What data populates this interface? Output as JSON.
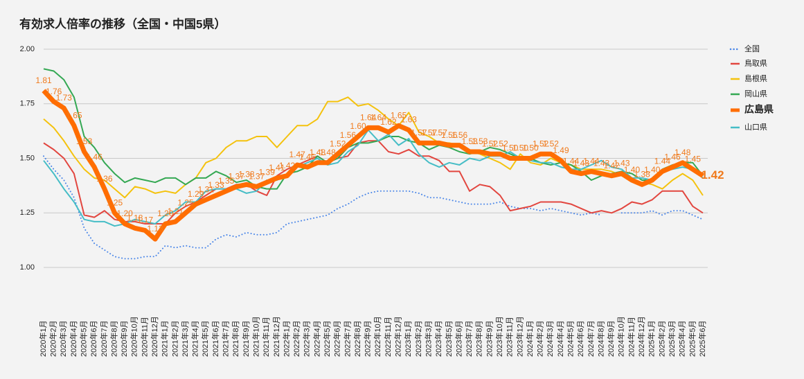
{
  "chart_data": {
    "type": "line",
    "title": "有効求人倍率の推移（全国・中国5県）",
    "categories": [
      "2020年1月",
      "2020年2月",
      "2020年3月",
      "2020年4月",
      "2020年5月",
      "2020年6月",
      "2020年7月",
      "2020年8月",
      "2020年9月",
      "2020年10月",
      "2020年11月",
      "2020年12月",
      "2021年1月",
      "2021年2月",
      "2021年3月",
      "2021年4月",
      "2021年5月",
      "2021年6月",
      "2021年7月",
      "2021年8月",
      "2021年9月",
      "2021年10月",
      "2021年11月",
      "2021年12月",
      "2022年1月",
      "2022年2月",
      "2022年3月",
      "2022年4月",
      "2022年5月",
      "2022年6月",
      "2022年7月",
      "2022年8月",
      "2022年9月",
      "2022年10月",
      "2022年11月",
      "2022年12月",
      "2023年1月",
      "2023年2月",
      "2023年3月",
      "2023年4月",
      "2023年5月",
      "2023年6月",
      "2023年7月",
      "2023年8月",
      "2023年9月",
      "2023年10月",
      "2023年11月",
      "2023年12月",
      "2024年1月",
      "2024年2月",
      "2024年3月",
      "2024年4月",
      "2024年5月",
      "2024年6月",
      "2024年7月",
      "2024年8月",
      "2024年9月",
      "2024年10月",
      "2024年11月",
      "2024年12月",
      "2025年1月",
      "2025年2月",
      "2025年3月",
      "2025年4月",
      "2025年5月",
      "2025年6月"
    ],
    "ylim": [
      0.85,
      2.0
    ],
    "yticks": [
      {
        "value": 1,
        "label": "1.00"
      },
      {
        "value": 1.25,
        "label": "1.25"
      },
      {
        "value": 1.5,
        "label": "1.50"
      },
      {
        "value": 1.75,
        "label": "1.75"
      },
      {
        "value": 2,
        "label": "2.00"
      }
    ],
    "grid": true,
    "legend": "right",
    "series": [
      {
        "name": "全国",
        "color": "#4a86e8",
        "line_style": "dotted",
        "line_width": 2,
        "values": [
          1.51,
          1.45,
          1.4,
          1.32,
          1.18,
          1.11,
          1.08,
          1.05,
          1.04,
          1.04,
          1.05,
          1.05,
          1.1,
          1.09,
          1.1,
          1.09,
          1.09,
          1.13,
          1.15,
          1.14,
          1.16,
          1.15,
          1.15,
          1.16,
          1.2,
          1.21,
          1.22,
          1.23,
          1.24,
          1.27,
          1.29,
          1.32,
          1.34,
          1.35,
          1.35,
          1.35,
          1.35,
          1.34,
          1.32,
          1.32,
          1.31,
          1.3,
          1.29,
          1.29,
          1.29,
          1.3,
          1.28,
          1.27,
          1.27,
          1.26,
          1.27,
          1.26,
          1.25,
          1.24,
          1.25,
          1.24,
          null,
          1.25,
          1.25,
          1.25,
          1.26,
          1.24,
          1.26,
          1.26,
          1.24,
          1.22
        ]
      },
      {
        "name": "鳥取県",
        "color": "#e2463f",
        "line_width": 2,
        "values": [
          1.57,
          1.54,
          1.5,
          1.43,
          1.24,
          1.23,
          1.26,
          1.22,
          1.21,
          1.21,
          1.2,
          1.2,
          1.2,
          1.25,
          1.28,
          1.3,
          1.33,
          1.36,
          1.36,
          1.38,
          1.38,
          1.35,
          1.33,
          1.42,
          1.45,
          1.47,
          1.49,
          1.51,
          1.48,
          1.5,
          1.51,
          1.57,
          1.58,
          1.58,
          1.53,
          1.52,
          1.54,
          1.51,
          1.51,
          1.49,
          1.44,
          1.44,
          1.35,
          1.38,
          1.37,
          1.33,
          1.26,
          1.27,
          1.28,
          1.3,
          1.3,
          1.3,
          1.29,
          1.27,
          1.25,
          1.26,
          1.25,
          1.27,
          1.3,
          1.29,
          1.31,
          1.35,
          1.35,
          1.35,
          1.28,
          1.25
        ]
      },
      {
        "name": "島根県",
        "color": "#f4c20d",
        "line_width": 2,
        "values": [
          1.68,
          1.64,
          1.58,
          1.51,
          1.45,
          1.41,
          1.4,
          1.36,
          1.32,
          1.37,
          1.36,
          1.34,
          1.35,
          1.34,
          1.38,
          1.41,
          1.48,
          1.5,
          1.55,
          1.58,
          1.58,
          1.6,
          1.6,
          1.55,
          1.6,
          1.65,
          1.65,
          1.68,
          1.76,
          1.76,
          1.78,
          1.74,
          1.75,
          1.72,
          1.68,
          1.65,
          1.71,
          1.62,
          1.6,
          1.57,
          1.57,
          1.56,
          1.53,
          1.52,
          1.5,
          1.48,
          1.45,
          1.52,
          1.48,
          1.47,
          1.5,
          1.48,
          1.47,
          1.45,
          1.45,
          1.45,
          1.44,
          1.42,
          1.4,
          1.39,
          1.38,
          1.36,
          1.4,
          1.43,
          1.4,
          1.33
        ]
      },
      {
        "name": "岡山県",
        "color": "#34a853",
        "line_width": 2,
        "values": [
          1.91,
          1.9,
          1.86,
          1.78,
          1.6,
          1.55,
          1.48,
          1.43,
          1.39,
          1.41,
          1.4,
          1.39,
          1.41,
          1.41,
          1.38,
          1.41,
          1.41,
          1.44,
          1.42,
          1.39,
          1.4,
          1.37,
          1.36,
          1.36,
          1.43,
          1.44,
          1.46,
          1.51,
          1.48,
          1.5,
          1.55,
          1.57,
          1.57,
          1.58,
          1.6,
          1.6,
          1.58,
          1.57,
          1.54,
          1.56,
          1.55,
          1.53,
          1.52,
          1.53,
          1.55,
          1.54,
          1.52,
          1.5,
          1.5,
          1.48,
          1.47,
          1.48,
          1.47,
          1.44,
          1.4,
          1.42,
          1.43,
          1.44,
          1.43,
          1.4,
          1.4,
          1.45,
          1.47,
          1.48,
          1.48,
          1.42
        ]
      },
      {
        "name": "広島県",
        "color": "#ff6d01",
        "line_width": 7,
        "values": [
          1.81,
          1.76,
          1.73,
          1.65,
          1.53,
          1.46,
          1.36,
          1.25,
          1.2,
          1.18,
          1.17,
          1.13,
          1.2,
          1.21,
          1.25,
          1.29,
          1.31,
          1.33,
          1.35,
          1.37,
          1.38,
          1.37,
          1.39,
          1.41,
          1.42,
          1.47,
          1.46,
          1.48,
          1.48,
          1.52,
          1.56,
          1.6,
          1.64,
          1.64,
          1.62,
          1.65,
          1.63,
          1.57,
          1.57,
          1.57,
          1.56,
          1.56,
          1.53,
          1.53,
          1.52,
          1.52,
          1.5,
          1.5,
          1.5,
          1.52,
          1.52,
          1.49,
          1.44,
          1.43,
          1.44,
          1.43,
          1.42,
          1.43,
          1.4,
          1.38,
          1.4,
          1.44,
          1.46,
          1.48,
          1.45,
          1.42
        ],
        "value_labels": [
          "1.81",
          "1.76",
          "1.73",
          "1.65",
          "1.53",
          "1.46",
          "1.36",
          "1.25",
          "1.20",
          "1.18",
          "1.17",
          "1.13",
          "1.20",
          "1.21",
          "1.25",
          "1.29",
          "1.31",
          "1.33",
          "1.35",
          "1.37",
          "1.38",
          "1.37",
          "1.39",
          "1.41",
          "1.42",
          "1.47",
          "1.46",
          "1.48",
          "1.48",
          "1.52",
          "1.56",
          "1.60",
          "1.64",
          "1.64",
          "1.62",
          "1.65",
          "1.63",
          "1.57",
          "1.57",
          "1.57",
          "1.56",
          "1.56",
          "1.53",
          "1.53",
          "1.52",
          "1.52",
          "1.50",
          "1.50",
          "1.50",
          "1.52",
          "1.52",
          "1.49",
          "1.44",
          "1.43",
          "1.44",
          "1.43",
          "1.42",
          "1.43",
          "1.40",
          "1.38",
          "1.40",
          "1.44",
          "1.46",
          "1.48",
          "1.45",
          "1.42"
        ]
      },
      {
        "name": "山口県",
        "color": "#46bdc6",
        "line_width": 2,
        "values": [
          1.49,
          1.43,
          1.36,
          1.3,
          1.22,
          1.21,
          1.21,
          1.19,
          1.2,
          1.22,
          1.21,
          1.2,
          1.24,
          1.26,
          1.3,
          1.3,
          1.35,
          1.36,
          1.36,
          1.36,
          1.34,
          1.35,
          1.4,
          1.4,
          1.43,
          1.46,
          1.48,
          1.5,
          1.47,
          1.48,
          1.53,
          1.56,
          1.63,
          1.58,
          1.61,
          1.56,
          1.59,
          1.52,
          1.48,
          1.46,
          1.48,
          1.47,
          1.5,
          1.49,
          1.51,
          1.51,
          1.53,
          1.5,
          1.49,
          1.48,
          1.48,
          1.46,
          1.45,
          1.45,
          1.47,
          1.49,
          1.46,
          1.45,
          1.41,
          1.41,
          1.4,
          1.44,
          1.45,
          1.46,
          1.45,
          1.41
        ]
      }
    ]
  }
}
